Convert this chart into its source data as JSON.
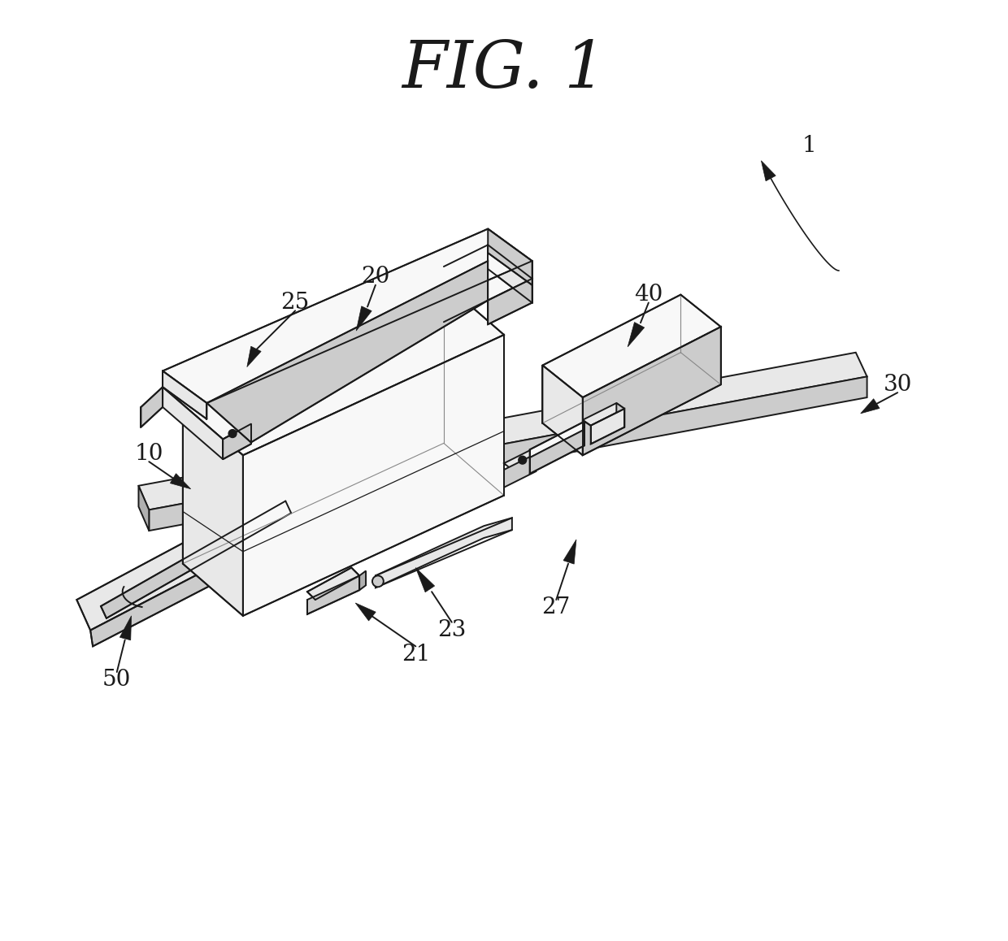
{
  "title": "FIG. 1",
  "title_fontsize": 58,
  "title_font": "serif",
  "bg_color": "#ffffff",
  "line_color": "#1a1a1a",
  "lw_main": 1.4,
  "fill_white": "#f8f8f8",
  "fill_light": "#e8e8e8",
  "fill_mid": "#cccccc",
  "fill_dark": "#b0b0b0",
  "fill_base": "#e0e0e0",
  "label_fontsize": 20,
  "label_color": "#1a1a1a"
}
